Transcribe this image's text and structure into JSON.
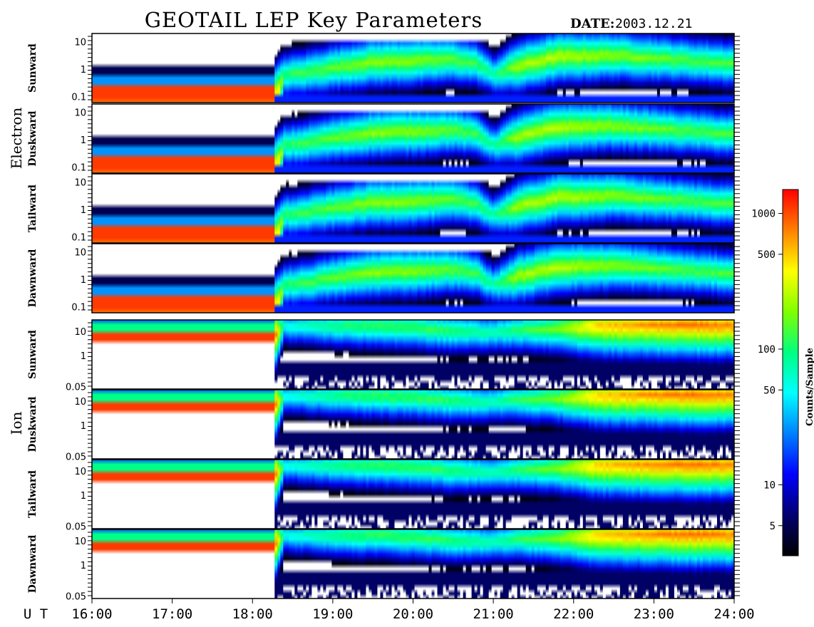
{
  "header": {
    "title": "GEOTAIL LEP Key Parameters",
    "date_label": "DATE:",
    "date_value": "2003.12.21"
  },
  "chart_data": {
    "type": "heatmap",
    "title": "GEOTAIL LEP Key Parameters",
    "x_axis_label": "U T",
    "x_ticks": [
      "16:00",
      "17:00",
      "18:00",
      "19:00",
      "20:00",
      "21:00",
      "22:00",
      "23:00",
      "24:00"
    ],
    "x_range": [
      "16:00",
      "24:00"
    ],
    "colorbar": {
      "label": "Counts/Sample",
      "scale": "log",
      "ticks": [
        "1000",
        "500",
        "100",
        "50",
        "10",
        "5"
      ],
      "range": [
        3,
        1500
      ],
      "colors": [
        "#000000",
        "#000070",
        "#0000ff",
        "#0080ff",
        "#00ffff",
        "#00ff80",
        "#80ff00",
        "#ffff00",
        "#ff8000",
        "#ff0000"
      ]
    },
    "groups": [
      {
        "name": "Electron",
        "y_scale": "log",
        "y_ticks": [
          "10",
          "1",
          "0.1"
        ],
        "panels": [
          {
            "name": "Sunward"
          },
          {
            "name": "Duskward"
          },
          {
            "name": "Tailward"
          },
          {
            "name": "Dawnward"
          }
        ]
      },
      {
        "name": "Ion",
        "y_scale": "log",
        "y_ticks": [
          "10",
          "1",
          "0.05"
        ],
        "panels": [
          {
            "name": "Sunward"
          },
          {
            "name": "Duskward"
          },
          {
            "name": "Tailward"
          },
          {
            "name": "Dawnward"
          }
        ]
      }
    ],
    "electron_profile": {
      "times_h": [
        16.0,
        16.1,
        16.3,
        16.6,
        17.0,
        17.5,
        18.0,
        18.28,
        18.4,
        18.6,
        19.0,
        19.5,
        20.0,
        20.5,
        20.8,
        21.0,
        21.3,
        21.8,
        22.5,
        23.0,
        23.5,
        24.0
      ],
      "peak_energy_log10": [
        -1.2,
        -1.2,
        -1.2,
        -1.2,
        -1.2,
        -1.2,
        -1.2,
        -1.2,
        -0.2,
        -0.15,
        0.05,
        0.25,
        0.3,
        0.35,
        0.2,
        -0.2,
        0.1,
        0.45,
        0.5,
        0.4,
        0.3,
        0.2
      ],
      "peak_level": [
        0.95,
        0.95,
        0.95,
        0.95,
        0.95,
        0.95,
        0.95,
        0.95,
        0.6,
        0.62,
        0.66,
        0.7,
        0.7,
        0.66,
        0.62,
        0.55,
        0.72,
        0.74,
        0.7,
        0.67,
        0.64,
        0.64
      ]
    },
    "ion_profile": {
      "times_h": [
        16.0,
        16.5,
        17.0,
        17.5,
        18.0,
        18.28,
        18.4,
        18.8,
        19.2,
        19.6,
        20.0,
        20.5,
        21.0,
        21.3,
        21.8,
        22.3,
        23.0,
        23.5,
        24.0
      ],
      "peak_energy_log10": [
        0.85,
        0.85,
        0.85,
        0.85,
        0.85,
        0.85,
        1.2,
        1.2,
        1.2,
        1.2,
        1.15,
        1.0,
        0.95,
        1.05,
        1.1,
        1.2,
        1.25,
        1.25,
        1.22
      ],
      "peak_level": [
        0.95,
        0.95,
        0.95,
        0.95,
        0.95,
        0.95,
        0.5,
        0.55,
        0.6,
        0.62,
        0.62,
        0.6,
        0.55,
        0.6,
        0.68,
        0.85,
        0.9,
        0.92,
        0.9
      ]
    }
  }
}
